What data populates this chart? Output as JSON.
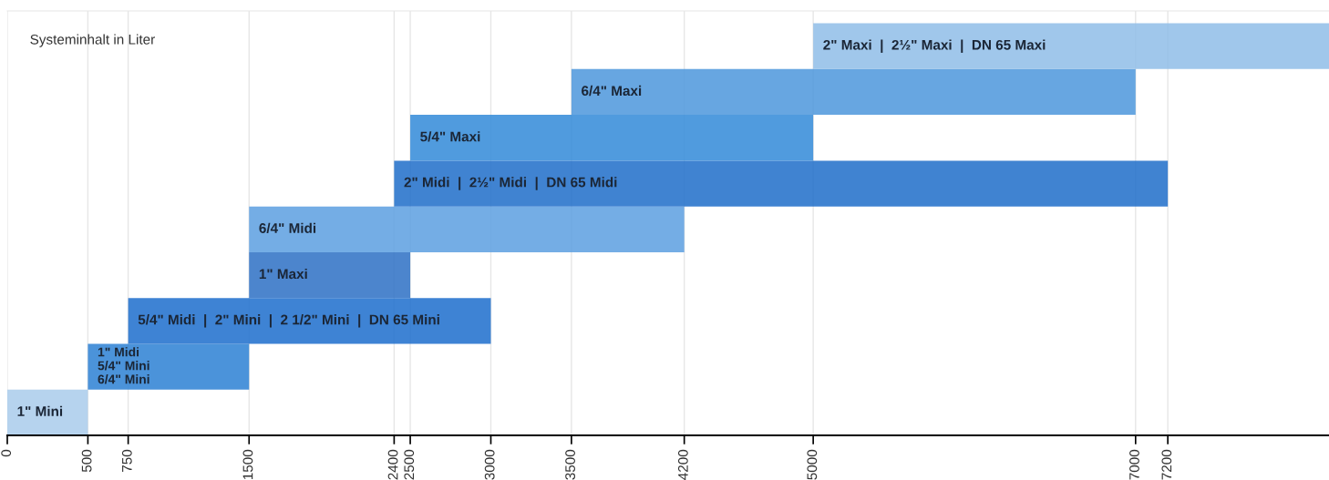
{
  "chart_data": {
    "type": "bar",
    "orientation": "horizontal",
    "categories": [
      "2\" Maxi  |  2½\" Maxi  |  DN 65 Maxi",
      "6/4\" Maxi",
      "5/4\" Maxi",
      "2\" Midi  |  2½\" Midi  |  DN 65 Midi",
      "6/4\" Midi",
      "1\" Maxi",
      "5/4\" Midi  |  2\" Mini  |  2 1/2\" Mini  |  DN 65 Mini",
      "1\" Midi\n5/4\" Mini\n6/4\" Mini",
      "1\" Mini"
    ],
    "base": [
      5000,
      3500,
      2500,
      2400,
      1500,
      1500,
      750,
      500,
      0
    ],
    "values": [
      3200,
      3500,
      2500,
      4800,
      2700,
      1000,
      2250,
      1000,
      500
    ],
    "colors": [
      "#8fbde8",
      "#4c97dc",
      "#3189d8",
      "#1f6dc9",
      "#5c9fe0",
      "#2d70c4",
      "#1c6dcc",
      "#2c80d3",
      "#a9cbeb"
    ],
    "xlim": [
      0,
      8200
    ],
    "xticks": [
      0,
      500,
      750,
      1500,
      2400,
      2500,
      3000,
      3500,
      4200,
      5000,
      7000,
      7200
    ],
    "grid": "x",
    "annotations": [
      "Systeminhalt in Liter"
    ]
  }
}
